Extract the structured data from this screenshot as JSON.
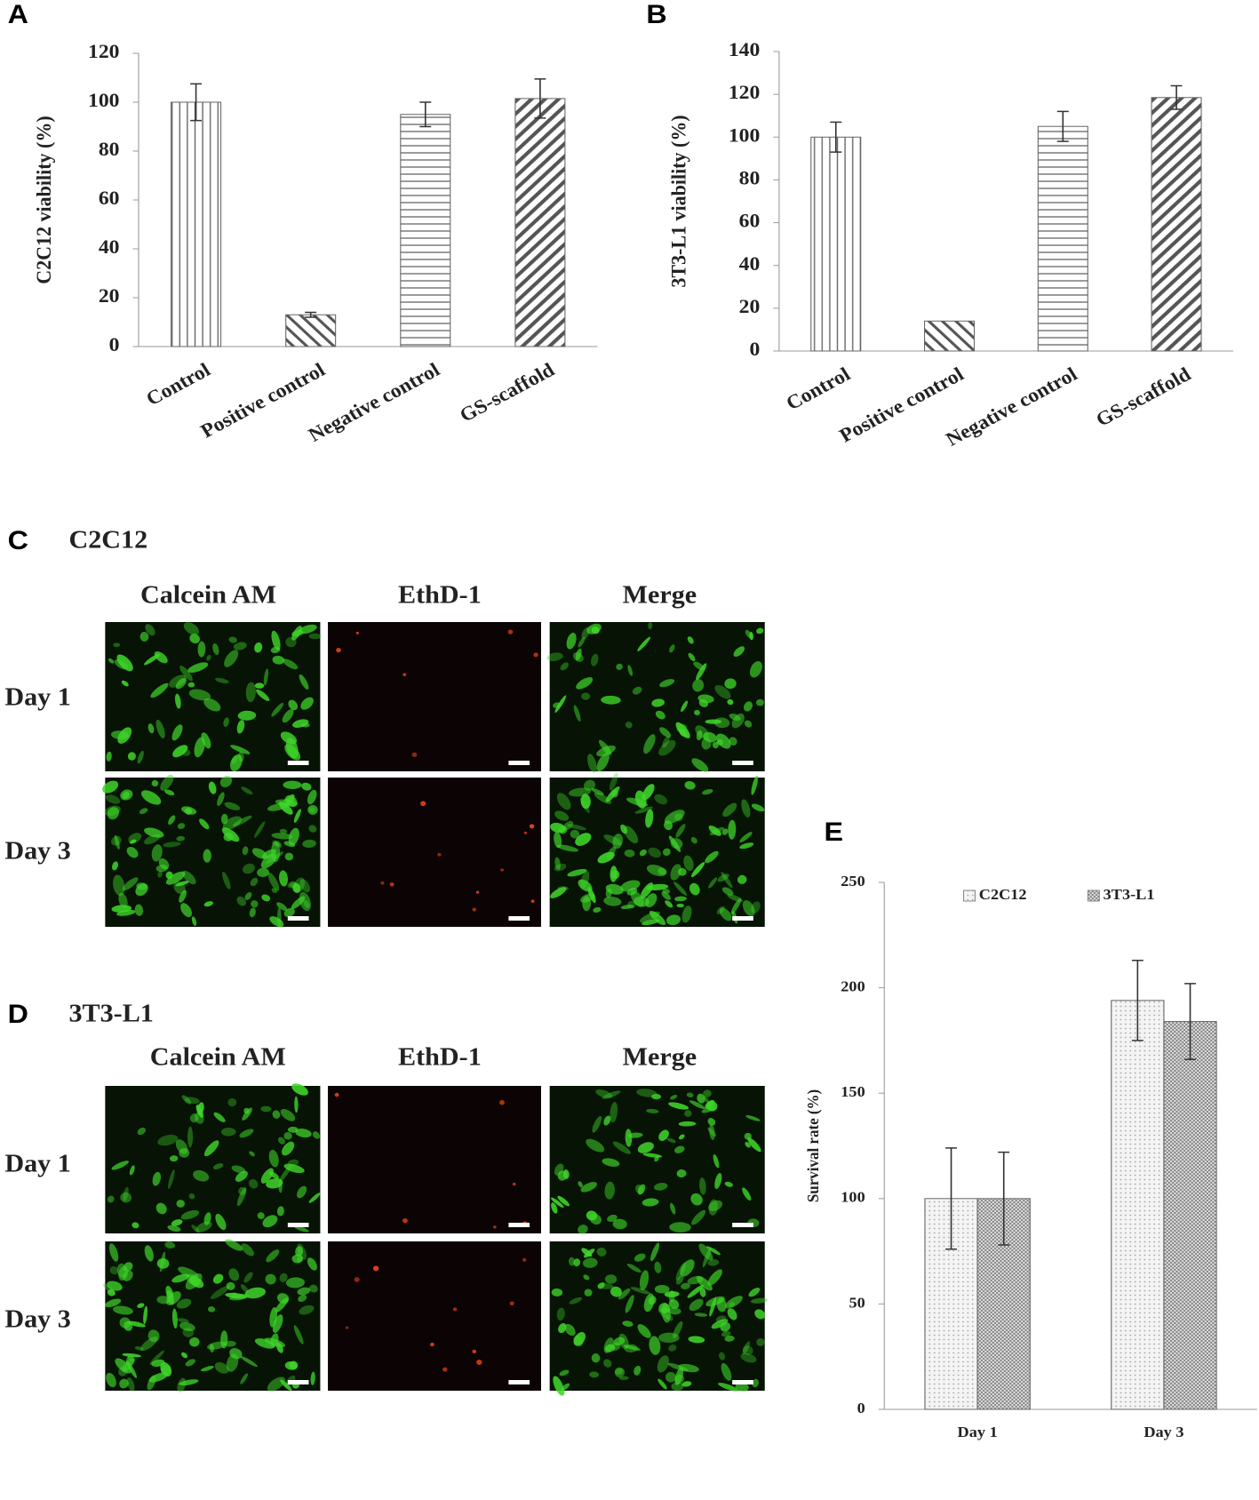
{
  "chart_data": [
    {
      "type": "bar",
      "panel_label": "A",
      "ylabel": "C2C12 viability  (%)",
      "categories": [
        "Control",
        "Positive control",
        "Negative control",
        "GS-scaffold"
      ],
      "values": [
        100,
        13,
        95,
        101.5
      ],
      "errors": [
        7.5,
        1,
        5,
        8
      ],
      "patterns": [
        "vertical",
        "diagonal-down",
        "horizontal",
        "diagonal-up"
      ],
      "ylim": [
        0,
        120
      ],
      "yticks": [
        0,
        20,
        40,
        60,
        80,
        100,
        120
      ]
    },
    {
      "type": "bar",
      "panel_label": "B",
      "ylabel": "3T3-L1 viability  (%)",
      "categories": [
        "Control",
        "Positive control",
        "Negative control",
        "GS-scaffold"
      ],
      "values": [
        100,
        14,
        105,
        118.5
      ],
      "errors": [
        7,
        null,
        7,
        5.5
      ],
      "patterns": [
        "vertical",
        "diagonal-down",
        "horizontal",
        "diagonal-up"
      ],
      "ylim": [
        0,
        140
      ],
      "yticks": [
        0,
        20,
        40,
        60,
        80,
        100,
        120,
        140
      ]
    },
    {
      "type": "bar",
      "panel_label": "E",
      "ylabel": "Survival rate (%)",
      "categories": [
        "Day 1",
        "Day 3"
      ],
      "series": [
        {
          "name": "C2C12",
          "pattern": "dots",
          "values": [
            100,
            194
          ],
          "errors": [
            24,
            19
          ]
        },
        {
          "name": "3T3-L1",
          "pattern": "cross",
          "values": [
            100,
            184
          ],
          "errors": [
            22,
            18
          ]
        }
      ],
      "ylim": [
        0,
        250
      ],
      "yticks": [
        0,
        50,
        100,
        150,
        200,
        250
      ],
      "legend": "top"
    }
  ],
  "panels": [
    {
      "label": "C",
      "title": "C2C12",
      "columns": [
        "Calcein AM",
        "EthD-1",
        "Merge"
      ],
      "rows": [
        "Day 1",
        "Day 3"
      ]
    },
    {
      "label": "D",
      "title": "3T3-L1",
      "columns": [
        "Calcein AM",
        "EthD-1",
        "Merge"
      ],
      "rows": [
        "Day 1",
        "Day 3"
      ]
    }
  ]
}
